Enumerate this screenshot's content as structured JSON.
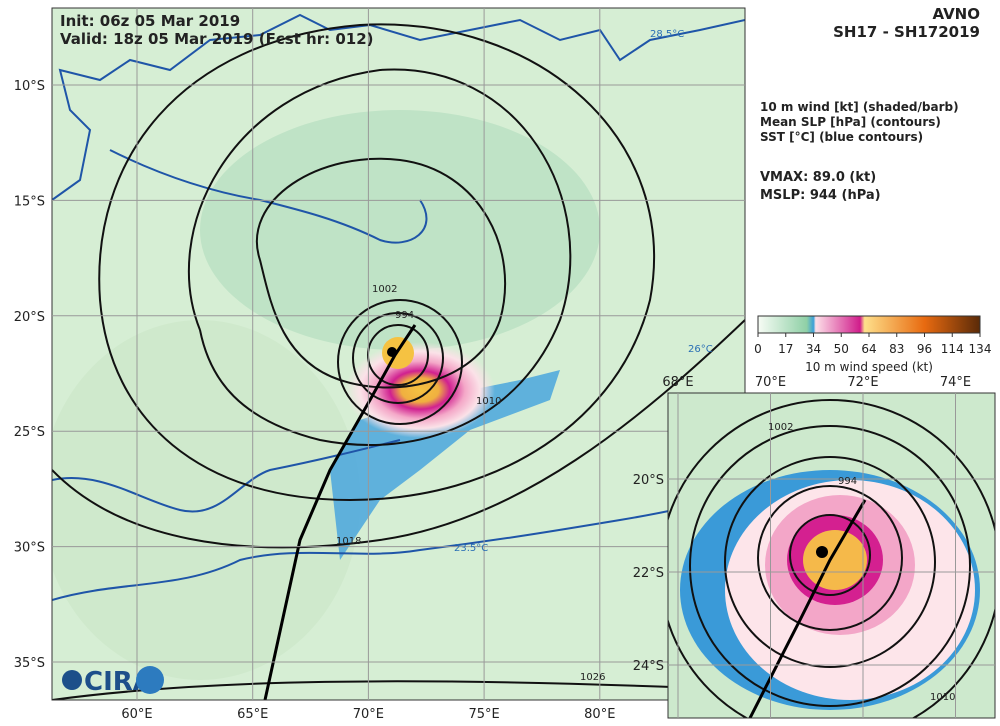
{
  "header": {
    "init": "Init:   06z 05 Mar 2019",
    "valid": "Valid: 18z 05 Mar 2019 (Fcst hr: 012)",
    "model": "AVNO",
    "storm": "SH17 - SH172019"
  },
  "legend": [
    "10 m wind [kt] (shaded/barb)",
    "Mean SLP [hPa] (contours)",
    "SST [°C] (blue contours)"
  ],
  "stats": {
    "vmax": "VMAX:  89.0 (kt)",
    "mslp": "MSLP:  944 (hPa)"
  },
  "colorbar": {
    "ticks": [
      0,
      17,
      34,
      50,
      64,
      83,
      96,
      114,
      134
    ],
    "label": "10 m wind speed (kt)"
  },
  "map": {
    "lat_labels": [
      "10°S",
      "15°S",
      "20°S",
      "25°S",
      "30°S",
      "35°S"
    ],
    "lon_labels": [
      "60°E",
      "65°E",
      "70°E",
      "75°E",
      "80°E"
    ],
    "contour_labels": [
      "1002",
      "994",
      "1010",
      "1018",
      "1026",
      "28.5°C",
      "23.5°C",
      "26°C"
    ],
    "logo": "CIRA"
  },
  "inset": {
    "lon_labels": [
      "68°E",
      "70°E",
      "72°E",
      "74°E"
    ],
    "lat_labels": [
      "20°S",
      "22°S",
      "24°S"
    ],
    "contour_labels": [
      "1002",
      "994",
      "1010"
    ]
  }
}
